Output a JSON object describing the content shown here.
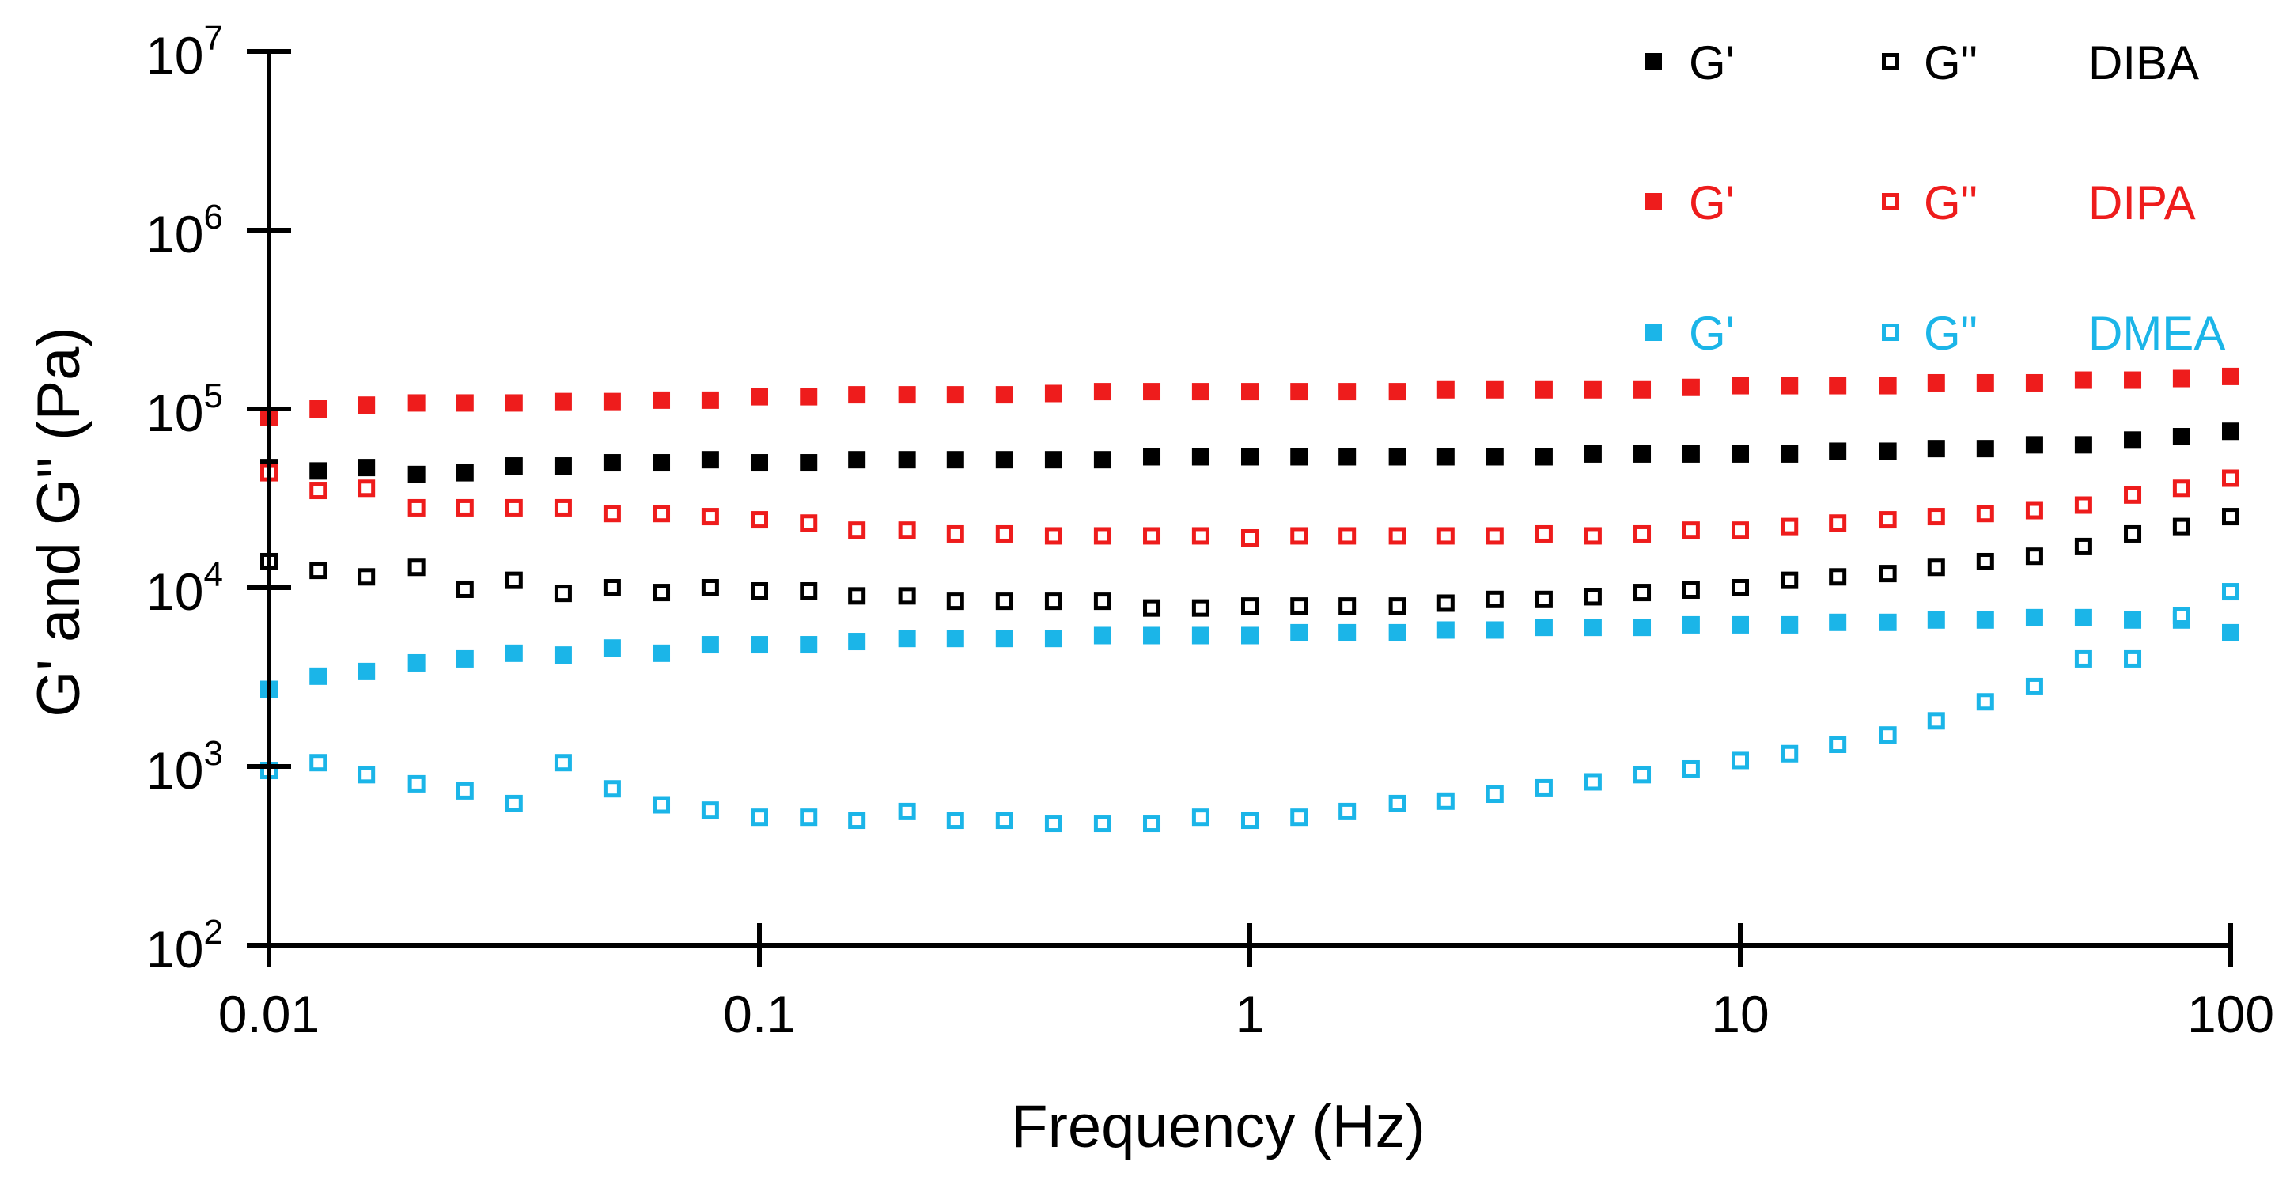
{
  "chart_data": {
    "type": "scatter",
    "xscale": "log",
    "yscale": "log",
    "xlabel": "Frequency (Hz)",
    "ylabel": "G' and G\" (Pa)",
    "xlim": [
      0.01,
      100
    ],
    "ylim": [
      100,
      10000000
    ],
    "x_ticks": [
      {
        "value": 0.01,
        "label": "0.01"
      },
      {
        "value": 0.1,
        "label": "0.1"
      },
      {
        "value": 1,
        "label": "1"
      },
      {
        "value": 10,
        "label": "10"
      },
      {
        "value": 100,
        "label": "100"
      }
    ],
    "y_ticks": [
      {
        "value": 100,
        "base": "10",
        "exp": "2"
      },
      {
        "value": 1000,
        "base": "10",
        "exp": "3"
      },
      {
        "value": 10000,
        "base": "10",
        "exp": "4"
      },
      {
        "value": 100000,
        "base": "10",
        "exp": "5"
      },
      {
        "value": 1000000,
        "base": "10",
        "exp": "6"
      },
      {
        "value": 10000000,
        "base": "10",
        "exp": "7"
      }
    ],
    "legend": {
      "position": "top-right",
      "rows": [
        {
          "group": "DIBA",
          "storage_label": "G'",
          "loss_label": "G\"",
          "name": "DIBA",
          "color": "#000000"
        },
        {
          "group": "DIPA",
          "storage_label": "G'",
          "loss_label": "G\"",
          "name": "DIPA",
          "color": "#ee1c1c"
        },
        {
          "group": "DMEA",
          "storage_label": "G'",
          "loss_label": "G\"",
          "name": "DMEA",
          "color": "#1bb5e8"
        }
      ]
    },
    "x": [
      0.01,
      0.0126,
      0.0158,
      0.02,
      0.0251,
      0.0316,
      0.0398,
      0.0501,
      0.0631,
      0.0794,
      0.1,
      0.126,
      0.158,
      0.2,
      0.251,
      0.316,
      0.398,
      0.501,
      0.631,
      0.794,
      1,
      1.26,
      1.58,
      2,
      2.51,
      3.16,
      3.98,
      5.01,
      6.31,
      7.94,
      10,
      12.6,
      15.8,
      20,
      25.1,
      31.6,
      39.8,
      50.1,
      63.1,
      79.4,
      100
    ],
    "series": [
      {
        "name": "DIBA G'",
        "group": "DIBA",
        "modulus": "storage",
        "marker": "filled",
        "color": "#000000",
        "values": [
          47000,
          45000,
          47000,
          43000,
          44000,
          48000,
          48000,
          50000,
          50000,
          52000,
          50000,
          50000,
          52000,
          52000,
          52000,
          52000,
          52000,
          52000,
          54000,
          54000,
          54000,
          54000,
          54000,
          54000,
          54000,
          54000,
          54000,
          56000,
          56000,
          56000,
          56000,
          56000,
          58000,
          58000,
          60000,
          60000,
          63000,
          63000,
          67000,
          70000,
          75000
        ]
      },
      {
        "name": "DIBA G\"",
        "group": "DIBA",
        "modulus": "loss",
        "marker": "open",
        "color": "#000000",
        "values": [
          14000,
          12500,
          11500,
          13000,
          9800,
          11000,
          9300,
          10000,
          9400,
          10000,
          9600,
          9600,
          9000,
          9000,
          8400,
          8400,
          8400,
          8400,
          7700,
          7700,
          7900,
          7900,
          7900,
          7900,
          8200,
          8600,
          8600,
          8900,
          9400,
          9700,
          10000,
          11000,
          11500,
          12000,
          13000,
          14000,
          15000,
          17000,
          20000,
          22000,
          25000
        ]
      },
      {
        "name": "DIPA G'",
        "group": "DIPA",
        "modulus": "storage",
        "marker": "filled",
        "color": "#ee1c1c",
        "values": [
          90000,
          100000,
          105000,
          108000,
          108000,
          108000,
          110000,
          110000,
          112000,
          112000,
          117000,
          117000,
          120000,
          120000,
          120000,
          120000,
          122000,
          125000,
          125000,
          125000,
          125000,
          125000,
          125000,
          125000,
          128000,
          128000,
          128000,
          128000,
          128000,
          132000,
          135000,
          135000,
          135000,
          135000,
          140000,
          140000,
          140000,
          145000,
          145000,
          148000,
          152000
        ]
      },
      {
        "name": "DIPA G\"",
        "group": "DIPA",
        "modulus": "loss",
        "marker": "open",
        "color": "#ee1c1c",
        "values": [
          44000,
          35000,
          36000,
          28000,
          28000,
          28000,
          28000,
          26000,
          26000,
          25000,
          24000,
          23000,
          21000,
          21000,
          20000,
          20000,
          19500,
          19500,
          19500,
          19500,
          19000,
          19500,
          19500,
          19500,
          19500,
          19500,
          20000,
          19500,
          20000,
          21000,
          21000,
          22000,
          23000,
          24000,
          25000,
          26000,
          27000,
          29000,
          33000,
          36000,
          41000
        ]
      },
      {
        "name": "DMEA G'",
        "group": "DMEA",
        "modulus": "storage",
        "marker": "filled",
        "color": "#1bb5e8",
        "values": [
          2700,
          3200,
          3400,
          3800,
          4000,
          4300,
          4200,
          4600,
          4300,
          4800,
          4800,
          4800,
          5000,
          5200,
          5200,
          5200,
          5200,
          5400,
          5400,
          5400,
          5400,
          5600,
          5600,
          5600,
          5800,
          5800,
          6000,
          6000,
          6000,
          6200,
          6200,
          6200,
          6400,
          6400,
          6600,
          6600,
          6800,
          6800,
          6600,
          6600,
          5600
        ]
      },
      {
        "name": "DMEA G\"",
        "group": "DMEA",
        "modulus": "loss",
        "marker": "open",
        "color": "#1bb5e8",
        "values": [
          950,
          1050,
          900,
          800,
          730,
          620,
          1050,
          750,
          610,
          570,
          520,
          520,
          500,
          560,
          500,
          500,
          480,
          480,
          480,
          520,
          500,
          520,
          560,
          620,
          640,
          700,
          760,
          820,
          900,
          970,
          1080,
          1180,
          1330,
          1500,
          1800,
          2300,
          2800,
          4000,
          4000,
          7000,
          9500
        ]
      }
    ]
  }
}
